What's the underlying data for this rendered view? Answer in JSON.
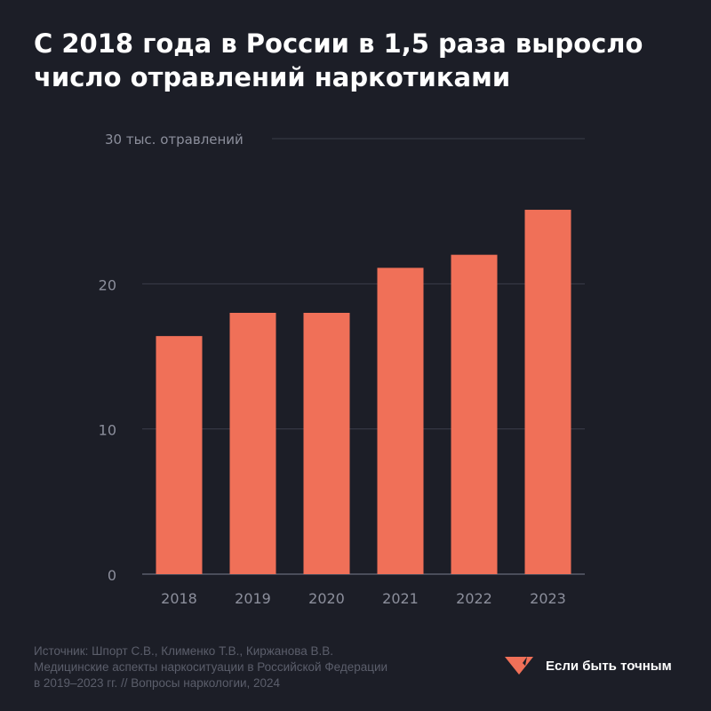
{
  "title_lines": [
    "С 2018 года в России в 1,5 раза выросло",
    "число отравлений наркотиками"
  ],
  "chart_data": {
    "type": "bar",
    "title": "С 2018 года в России в 1,5 раза выросло число отравлений наркотиками",
    "top_label": "30 тыс. отравлений",
    "categories": [
      "2018",
      "2019",
      "2020",
      "2021",
      "2022",
      "2023"
    ],
    "values": [
      16.4,
      18.0,
      18.0,
      21.1,
      22.0,
      25.1
    ],
    "ylim": [
      0,
      30
    ],
    "yticks": [
      {
        "value": 0,
        "label": "0"
      },
      {
        "value": 10,
        "label": "10"
      },
      {
        "value": 20,
        "label": "20"
      },
      {
        "value": 30,
        "label": ""
      }
    ],
    "grid": true,
    "bar_color": "#f07058",
    "grid_color": "#3a3d4a",
    "tick_label_color": "#8c8f9c"
  },
  "source_lines": [
    "Источник: Шпорт С.В., Клименко Т.В., Киржанова В.В.",
    "Медицинские аспекты наркоситуации в Российской Федерации",
    "в 2019–2023 гг. // Вопросы наркологии, 2024"
  ],
  "brand": {
    "name": "Если быть точным",
    "logo_icon": "heart-stripes-icon",
    "logo_color": "#f07058"
  }
}
